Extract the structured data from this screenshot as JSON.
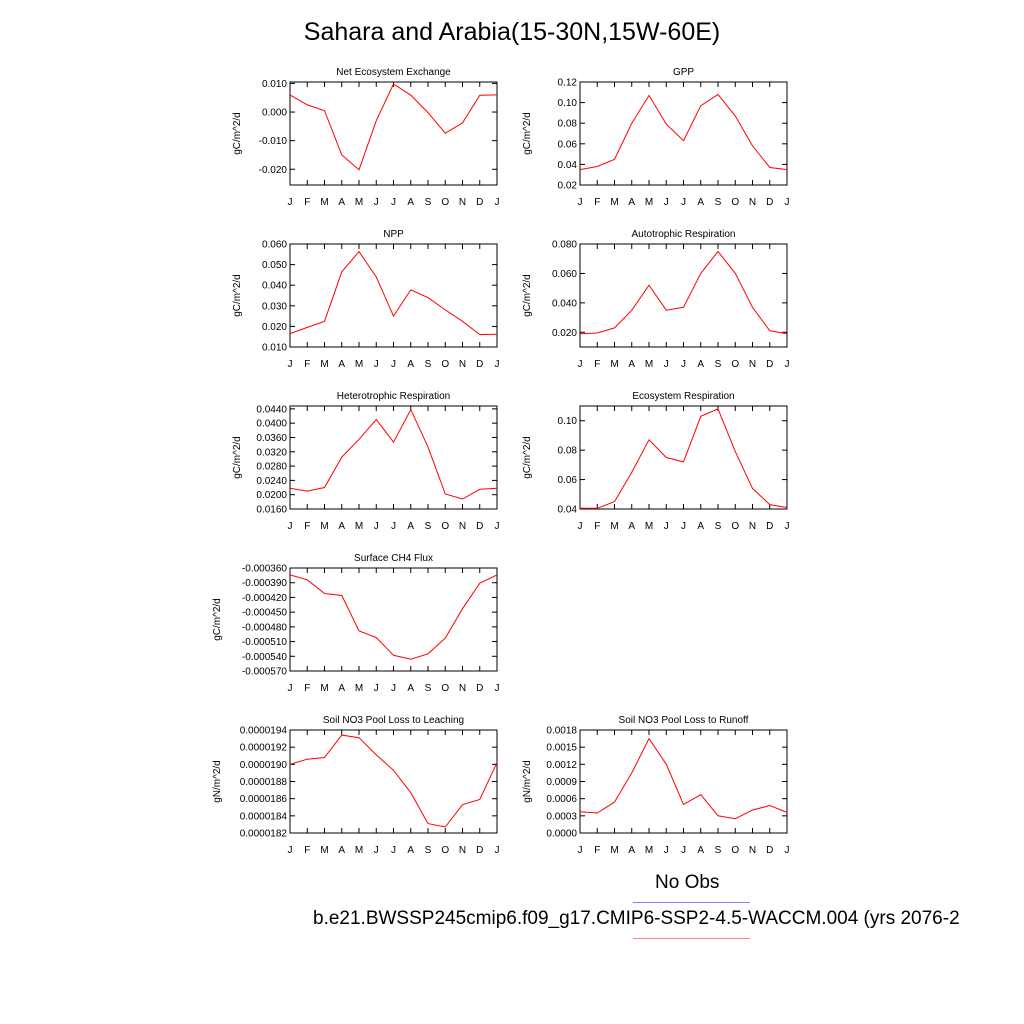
{
  "page": {
    "title": "Sahara and Arabia(15-30N,15W-60E)",
    "legend_obs": "No Obs",
    "legend_model": "b.e21.BWSSP245cmip6.f09_g17.CMIP6-SSP2-4.5-WACCM.004 (yrs 2076-2",
    "colors": {
      "model": "#ff0000",
      "obs": "#8080ff",
      "model_legend": "#ff8080"
    }
  },
  "chart_data": [
    {
      "type": "line",
      "title": "Net Ecosystem Exchange",
      "ylabel": "gC/m^2/d",
      "categories": [
        "J",
        "F",
        "M",
        "A",
        "M",
        "J",
        "J",
        "A",
        "S",
        "O",
        "N",
        "D",
        "J"
      ],
      "ylim": [
        -0.0255,
        0.0105
      ],
      "yticks": [
        "0.010",
        "0.000",
        "-0.010",
        "-0.020"
      ],
      "ytick_values": [
        0.01,
        0.0,
        -0.01,
        -0.02
      ],
      "values": [
        0.006,
        0.0025,
        0.0005,
        -0.015,
        -0.0202,
        -0.003,
        0.0098,
        0.0059,
        -0.0002,
        -0.0074,
        -0.0038,
        0.0059,
        0.006
      ]
    },
    {
      "type": "line",
      "title": "GPP",
      "ylabel": "gC/m^2/d",
      "categories": [
        "J",
        "F",
        "M",
        "A",
        "M",
        "J",
        "J",
        "A",
        "S",
        "O",
        "N",
        "D",
        "J"
      ],
      "ylim": [
        0.02,
        0.12
      ],
      "yticks": [
        "0.12",
        "0.10",
        "0.08",
        "0.06",
        "0.04",
        "0.02"
      ],
      "ytick_values": [
        0.12,
        0.1,
        0.08,
        0.06,
        0.04,
        0.02
      ],
      "values": [
        0.035,
        0.038,
        0.045,
        0.08,
        0.107,
        0.079,
        0.063,
        0.097,
        0.108,
        0.087,
        0.058,
        0.037,
        0.035
      ]
    },
    {
      "type": "line",
      "title": "NPP",
      "ylabel": "gC/m^2/d",
      "categories": [
        "J",
        "F",
        "M",
        "A",
        "M",
        "J",
        "J",
        "A",
        "S",
        "O",
        "N",
        "D",
        "J"
      ],
      "ylim": [
        0.01,
        0.06
      ],
      "yticks": [
        "0.060",
        "0.050",
        "0.040",
        "0.030",
        "0.020",
        "0.010"
      ],
      "ytick_values": [
        0.06,
        0.05,
        0.04,
        0.03,
        0.02,
        0.01
      ],
      "values": [
        0.0165,
        0.0195,
        0.0225,
        0.0465,
        0.0563,
        0.044,
        0.025,
        0.0377,
        0.034,
        0.028,
        0.0225,
        0.016,
        0.0162
      ]
    },
    {
      "type": "line",
      "title": "Autotrophic Respiration",
      "ylabel": "gC/m^2/d",
      "categories": [
        "J",
        "F",
        "M",
        "A",
        "M",
        "J",
        "J",
        "A",
        "S",
        "O",
        "N",
        "D",
        "J"
      ],
      "ylim": [
        0.01,
        0.08
      ],
      "yticks": [
        "0.080",
        "0.060",
        "0.040",
        "0.020"
      ],
      "ytick_values": [
        0.08,
        0.06,
        0.04,
        0.02
      ],
      "values": [
        0.019,
        0.0195,
        0.023,
        0.035,
        0.052,
        0.035,
        0.037,
        0.06,
        0.075,
        0.06,
        0.037,
        0.021,
        0.019
      ]
    },
    {
      "type": "line",
      "title": "Heterotrophic Respiration",
      "ylabel": "gC/m^2/d",
      "categories": [
        "J",
        "F",
        "M",
        "A",
        "M",
        "J",
        "J",
        "A",
        "S",
        "O",
        "N",
        "D",
        "J"
      ],
      "ylim": [
        0.016,
        0.0448
      ],
      "yticks": [
        "0.0440",
        "0.0400",
        "0.0360",
        "0.0320",
        "0.0280",
        "0.0240",
        "0.0200",
        "0.0160"
      ],
      "ytick_values": [
        0.044,
        0.04,
        0.036,
        0.032,
        0.028,
        0.024,
        0.02,
        0.016
      ],
      "values": [
        0.0218,
        0.021,
        0.022,
        0.0305,
        0.0355,
        0.041,
        0.0347,
        0.0438,
        0.0333,
        0.0202,
        0.0188,
        0.0215,
        0.0218
      ]
    },
    {
      "type": "line",
      "title": "Ecosystem Respiration",
      "ylabel": "gC/m^2/d",
      "categories": [
        "J",
        "F",
        "M",
        "A",
        "M",
        "J",
        "J",
        "A",
        "S",
        "O",
        "N",
        "D",
        "J"
      ],
      "ylim": [
        0.04,
        0.11
      ],
      "yticks": [
        "0.10",
        "0.08",
        "0.06",
        "0.04"
      ],
      "ytick_values": [
        0.1,
        0.08,
        0.06,
        0.04
      ],
      "values": [
        0.0405,
        0.0405,
        0.045,
        0.065,
        0.087,
        0.075,
        0.072,
        0.103,
        0.108,
        0.079,
        0.054,
        0.043,
        0.041
      ]
    },
    {
      "type": "line",
      "title": "Surface CH4 Flux",
      "ylabel": "gC/m^2/d",
      "categories": [
        "J",
        "F",
        "M",
        "A",
        "M",
        "J",
        "J",
        "A",
        "S",
        "O",
        "N",
        "D",
        "J"
      ],
      "ylim": [
        -0.00057,
        -0.00036
      ],
      "yticks": [
        "-0.000360",
        "-0.000390",
        "-0.000420",
        "-0.000450",
        "-0.000480",
        "-0.000510",
        "-0.000540",
        "-0.000570"
      ],
      "ytick_values": [
        -0.00036,
        -0.00039,
        -0.00042,
        -0.00045,
        -0.00048,
        -0.00051,
        -0.00054,
        -0.00057
      ],
      "values": [
        -0.000374,
        -0.000384,
        -0.000412,
        -0.000416,
        -0.000488,
        -0.000502,
        -0.000538,
        -0.000546,
        -0.000535,
        -0.000503,
        -0.000443,
        -0.000391,
        -0.000374
      ]
    },
    {
      "type": "line",
      "title": "Soil NO3 Pool Loss to Leaching",
      "ylabel": "gN/m^2/d",
      "categories": [
        "J",
        "F",
        "M",
        "A",
        "M",
        "J",
        "J",
        "A",
        "S",
        "O",
        "N",
        "D",
        "J"
      ],
      "ylim": [
        1.82e-05,
        1.94e-05
      ],
      "yticks": [
        "0.0000194",
        "0.0000192",
        "0.0000190",
        "0.0000188",
        "0.0000186",
        "0.0000184",
        "0.0000182"
      ],
      "ytick_values": [
        1.94e-05,
        1.92e-05,
        1.9e-05,
        1.88e-05,
        1.86e-05,
        1.84e-05,
        1.82e-05
      ],
      "values": [
        1.9e-05,
        1.906e-05,
        1.908e-05,
        1.934e-05,
        1.931e-05,
        1.911e-05,
        1.893e-05,
        1.867e-05,
        1.831e-05,
        1.827e-05,
        1.853e-05,
        1.859e-05,
        1.902e-05
      ]
    },
    {
      "type": "line",
      "title": "Soil NO3 Pool Loss to Runoff",
      "ylabel": "gN/m^2/d",
      "categories": [
        "J",
        "F",
        "M",
        "A",
        "M",
        "J",
        "J",
        "A",
        "S",
        "O",
        "N",
        "D",
        "J"
      ],
      "ylim": [
        0.0,
        0.0018
      ],
      "yticks": [
        "0.0018",
        "0.0015",
        "0.0012",
        "0.0009",
        "0.0006",
        "0.0003",
        "0.0000"
      ],
      "ytick_values": [
        0.0018,
        0.0015,
        0.0012,
        0.0009,
        0.0006,
        0.0003,
        0.0
      ],
      "values": [
        0.00037,
        0.00035,
        0.00054,
        0.00105,
        0.00165,
        0.0012,
        0.0005,
        0.00067,
        0.0003,
        0.00025,
        0.0004,
        0.00048,
        0.00036
      ]
    }
  ]
}
